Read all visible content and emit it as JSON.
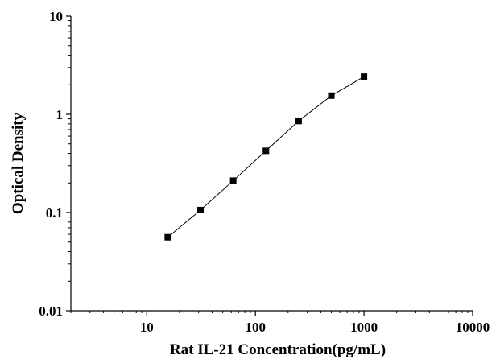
{
  "chart_data": {
    "type": "scatter",
    "xlabel": "Rat IL-21 Concentration(pg/mL)",
    "ylabel": "Optical Density",
    "x_scale": "log",
    "y_scale": "log",
    "xlim": [
      2,
      10000
    ],
    "ylim": [
      0.01,
      10
    ],
    "x_ticks": [
      "10",
      "100",
      "1000",
      "10000"
    ],
    "y_ticks": [
      "0.01",
      "0.1",
      "1",
      "10"
    ],
    "grid": false,
    "legend": "none",
    "marker": "square",
    "line": "connected",
    "color": "#000000",
    "series": [
      {
        "x": [
          15.6,
          31.25,
          62.5,
          125,
          250,
          500,
          1000
        ],
        "y": [
          0.056,
          0.106,
          0.211,
          0.425,
          0.855,
          1.55,
          2.42
        ]
      }
    ]
  }
}
